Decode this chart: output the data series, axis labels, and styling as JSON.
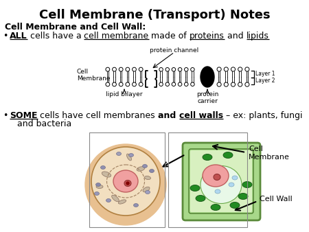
{
  "title": "Cell Membrane (Transport) Notes",
  "title_fontsize": 13,
  "bg_color": "#ffffff",
  "section_heading": "Cell Membrane and Cell Wall:",
  "cell_membrane_label": "Cell\nMembrane",
  "cell_wall_label": "Cell Wall",
  "protein_channel": "protein channel",
  "lipid_bilayer": "lipid bilayer",
  "protein_carrier": "protein\ncarrier",
  "layer1": "Layer 1",
  "layer2": "Layer 2",
  "bullet2_line2": "and bacteria"
}
